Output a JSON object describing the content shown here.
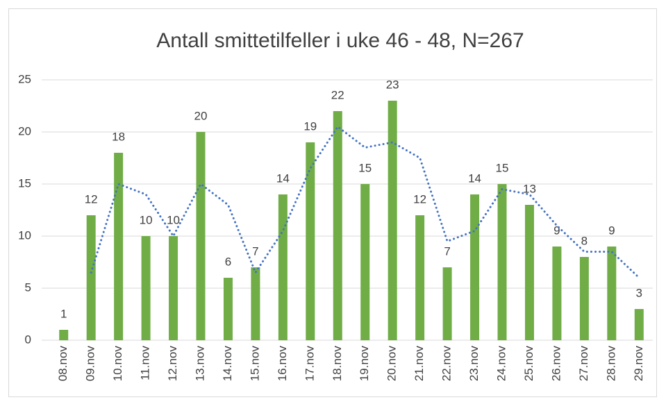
{
  "chart_data": {
    "type": "bar",
    "title": "Antall smittetilfeller i uke 46 - 48, N=267",
    "categories": [
      "08.nov",
      "09.nov",
      "10.nov",
      "11.nov",
      "12.nov",
      "13.nov",
      "14.nov",
      "15.nov",
      "16.nov",
      "17.nov",
      "18.nov",
      "19.nov",
      "20.nov",
      "21.nov",
      "22.nov",
      "23.nov",
      "24.nov",
      "25.nov",
      "26.nov",
      "27.nov",
      "28.nov",
      "29.nov"
    ],
    "series": [
      {
        "type": "bar",
        "color": "#70ad47",
        "values": [
          1,
          12,
          18,
          10,
          10,
          20,
          6,
          7,
          14,
          19,
          22,
          15,
          23,
          12,
          7,
          14,
          15,
          13,
          9,
          8,
          9,
          3
        ]
      },
      {
        "type": "line",
        "color": "#4472c4",
        "dotted": true,
        "values": [
          null,
          6.5,
          15,
          14,
          10,
          15,
          13,
          6.5,
          10.5,
          16.5,
          20.5,
          18.5,
          19,
          17.5,
          9.5,
          10.5,
          14.5,
          14,
          11,
          8.5,
          8.5,
          6
        ]
      }
    ],
    "ylim": [
      0,
      25
    ],
    "yticks": [
      0,
      5,
      10,
      15,
      20,
      25
    ],
    "grid": true,
    "data_labels": true
  }
}
